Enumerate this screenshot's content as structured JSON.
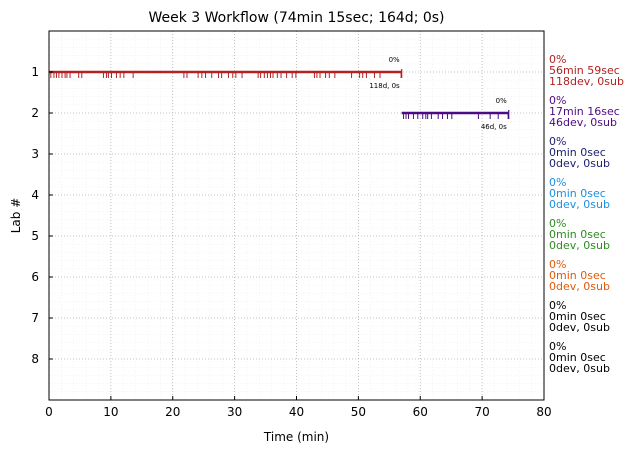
{
  "chart_data": {
    "type": "timeline",
    "title": "Week 3 Workflow (74min 15sec; 164d; 0s)",
    "xlabel": "Time (min)",
    "ylabel": "Lab #",
    "xlim": [
      0,
      80
    ],
    "ylim": [
      0,
      9
    ],
    "xticks": [
      "0",
      "10",
      "20",
      "30",
      "40",
      "50",
      "60",
      "70",
      "80"
    ],
    "yticks": [
      "1",
      "2",
      "3",
      "4",
      "5",
      "6",
      "7",
      "8"
    ],
    "grid": true,
    "labs": [
      {
        "lab": 1,
        "color": "#b22222",
        "start": 0,
        "end": 57,
        "events": [
          0.3,
          0.8,
          1.2,
          1.6,
          2.1,
          2.6,
          2.9,
          3.4,
          4.8,
          5.3,
          8.8,
          9.3,
          9.6,
          10.1,
          10.9,
          11.5,
          12.1,
          13.6,
          21.8,
          22.3,
          24.1,
          24.7,
          25.3,
          26.3,
          27.4,
          27.9,
          29.0,
          29.7,
          30.2,
          31.2,
          33.8,
          34.2,
          34.8,
          35.3,
          35.8,
          36.2,
          36.9,
          37.5,
          38.4,
          39.3,
          39.9,
          42.9,
          43.3,
          43.8,
          44.7,
          45.3,
          46.2,
          48.9,
          50.2,
          50.7,
          51.3,
          52.6,
          53.5,
          56.9
        ],
        "bar_pct": "0%",
        "count_label": "118d, 0s",
        "summary": [
          "0%",
          "56min 59sec",
          "118dev, 0sub"
        ]
      },
      {
        "lab": 2,
        "color": "#4b0c82",
        "start": 57,
        "end": 74.3,
        "events": [
          57.3,
          57.7,
          58.1,
          58.9,
          59.6,
          60.4,
          60.9,
          61.2,
          61.8,
          62.9,
          63.6,
          64.4,
          65.1,
          69.4,
          71.3,
          72.6,
          74.2
        ],
        "bar_pct": "0%",
        "count_label": "46d, 0s",
        "summary": [
          "0%",
          "17min 16sec",
          "46dev, 0sub"
        ]
      },
      {
        "lab": 3,
        "color": "#1a1f6e",
        "summary": [
          "0%",
          "0min 0sec",
          "0dev, 0sub"
        ]
      },
      {
        "lab": 4,
        "color": "#1e90e0",
        "summary": [
          "0%",
          "0min 0sec",
          "0dev, 0sub"
        ]
      },
      {
        "lab": 5,
        "color": "#2e8b22",
        "summary": [
          "0%",
          "0min 0sec",
          "0dev, 0sub"
        ]
      },
      {
        "lab": 6,
        "color": "#e05a0a",
        "summary": [
          "0%",
          "0min 0sec",
          "0dev, 0sub"
        ]
      },
      {
        "lab": 7,
        "color": "#000000",
        "summary": [
          "0%",
          "0min 0sec",
          "0dev, 0sub"
        ]
      },
      {
        "lab": 8,
        "color": "#000000",
        "summary": [
          "0%",
          "0min 0sec",
          "0dev, 0sub"
        ]
      }
    ]
  }
}
